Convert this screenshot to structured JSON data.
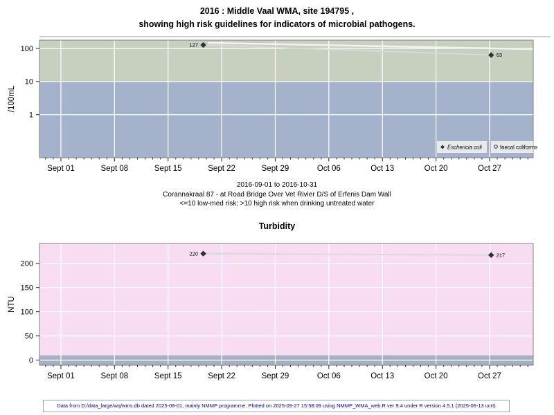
{
  "title": {
    "line1": "2016 : Middle Vaal WMA, site 194795 ,",
    "line2": "showing high risk guidelines for indicators of microbial pathogens."
  },
  "subtitle": {
    "line1": "2016-09-01 to 2016-10-31",
    "line2": "Corannakraal 87 - at Road Bridge Over Vet Rivier D/S of Erfenis Dam Wall",
    "line3": "<=10 low-med risk; >10 high risk when drinking untreated water"
  },
  "footer": {
    "text": "Data from D:/data_large/wq/wms.db dated 2025-08-01, mainly NMMP programme. Plotted on 2025-09-27 15:58:09 using NMMP_WMA_web.R ver 9.4 under R version 4.5.1 (2025-06-13 ucrt)"
  },
  "colors": {
    "high_risk_band_green": "#c7cfbe",
    "low_med_band_blue": "#a4b2cb",
    "turbidity_band_pink": "#f8ddf2",
    "turbidity_low_band_gray": "#a7b0c3",
    "gridline": "#ffffff",
    "series_line_light": "#d9d9d9",
    "series_line_lighter": "#f2f2f2",
    "marker_dark": "#2f2f2f",
    "plot_border": "#808080",
    "legend_bg": "#e9e9e9",
    "footer_text": "#00008b"
  },
  "chart_data": [
    {
      "type": "scatter",
      "name": "microbial-pathogens",
      "ylabel": "/100mL",
      "yscale": "log",
      "ylim": [
        0.05,
        178
      ],
      "yticks": [
        1,
        10,
        100
      ],
      "x_domain_days": [
        -2.8,
        61.7
      ],
      "x_major_days": [
        0,
        7,
        14,
        21,
        28,
        35,
        42,
        49,
        56
      ],
      "x_tick_labels": [
        "Sept 01",
        "Sept 08",
        "Sept 15",
        "Sept 22",
        "Sept 29",
        "Oct 06",
        "Oct 13",
        "Oct 20",
        "Oct 27"
      ],
      "risk_note": "<=10 low-med risk; >10 high risk",
      "bands": [
        {
          "name": "high-risk-band",
          "from": 10,
          "to": 178,
          "color": "#c7cfbe"
        },
        {
          "name": "low-med-risk-band",
          "from": 0.05,
          "to": 10,
          "color": "#a4b2cb"
        }
      ],
      "series": [
        {
          "name": "Eschericia coli",
          "marker": "diamond",
          "marker_color": "#2f2f2f",
          "line_color": "#d9d9d9",
          "line_width": 2,
          "points": [
            {
              "day": 18.6,
              "value": 127,
              "label": "127",
              "label_side": "left"
            },
            {
              "day": 56.2,
              "value": 63,
              "label": "63",
              "label_side": "right"
            }
          ]
        },
        {
          "name": "faecal coliforms",
          "marker": "none",
          "marker_color": "#2f2f2f",
          "line_color": "#f2f2f2",
          "line_width": 2.5,
          "points": [
            {
              "day": 19.2,
              "value": 147
            },
            {
              "day": 61.7,
              "value": 95
            }
          ]
        }
      ],
      "legend": {
        "position": "bottom-right",
        "items": [
          {
            "label": "Eschericia coli",
            "italic": true,
            "marker": "diamond"
          },
          {
            "label": "faecal coliforms",
            "italic": false,
            "marker": "open-circle"
          }
        ]
      }
    },
    {
      "type": "scatter",
      "name": "turbidity",
      "title": "Turbidity",
      "ylabel": "NTU",
      "yscale": "linear",
      "ylim": [
        -10.4,
        241
      ],
      "yticks": [
        0,
        50,
        100,
        150,
        200
      ],
      "x_domain_days": [
        -2.8,
        61.7
      ],
      "x_major_days": [
        0,
        7,
        14,
        21,
        28,
        35,
        42,
        49,
        56
      ],
      "x_tick_labels": [
        "Sept 01",
        "Sept 08",
        "Sept 15",
        "Sept 22",
        "Sept 29",
        "Oct 06",
        "Oct 13",
        "Oct 20",
        "Oct 27"
      ],
      "bands": [
        {
          "name": "turbidity-main-band",
          "from": 10,
          "to": 241,
          "color": "#f8ddf2"
        },
        {
          "name": "turbidity-low-band",
          "from": -10.4,
          "to": 10,
          "color": "#a7b0c3"
        }
      ],
      "series": [
        {
          "name": "Turbidity",
          "marker": "diamond",
          "marker_color": "#2f2f2f",
          "line_color": "#d9d9d9",
          "line_width": 2,
          "points": [
            {
              "day": 18.6,
              "value": 220,
              "label": "220",
              "label_side": "left"
            },
            {
              "day": 56.2,
              "value": 217,
              "label": "217",
              "label_side": "right"
            }
          ]
        }
      ]
    }
  ]
}
